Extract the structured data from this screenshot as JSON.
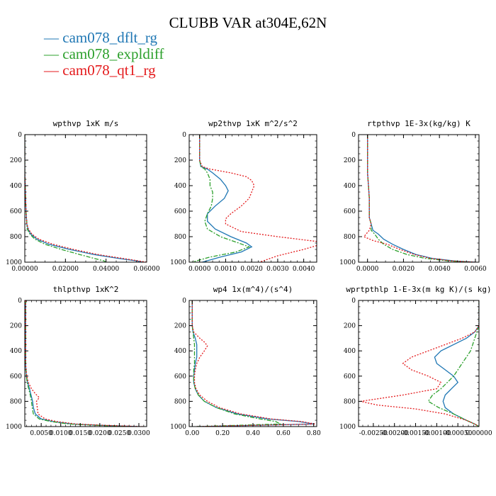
{
  "title": "CLUBB VAR at304E,62N",
  "legend": [
    {
      "label": "cam078_dflt_rg",
      "color": "#1f77b4"
    },
    {
      "label": "cam078_expldiff",
      "color": "#2ca02c"
    },
    {
      "label": "cam078_qt1_rg",
      "color": "#e41a1c"
    }
  ],
  "chart_data": [
    {
      "type": "line",
      "title": "wpthvp  1xK m/s",
      "xlim": [
        0,
        0.06
      ],
      "ylim": [
        0,
        1000
      ],
      "x_ticks": [
        0,
        0.02,
        0.04,
        0.06
      ],
      "x_tick_labels": [
        "0.00000",
        "0.02000",
        "0.04000",
        "0.06000"
      ],
      "y_ticks": [
        0,
        200,
        400,
        600,
        800,
        1000
      ],
      "y_tick_labels": [
        "0",
        "200",
        "400",
        "600",
        "800",
        "1000"
      ],
      "series": [
        {
          "name": "cam078_dflt_rg",
          "y": [
            0,
            100,
            200,
            300,
            400,
            500,
            600,
            650,
            700,
            740,
            780,
            820,
            860,
            900,
            940,
            970,
            990,
            1000
          ],
          "x": [
            0,
            0,
            0,
            0,
            0.0002,
            0.0004,
            0.0006,
            0.0008,
            0.001,
            0.0015,
            0.003,
            0.006,
            0.012,
            0.022,
            0.034,
            0.046,
            0.055,
            0.058
          ]
        },
        {
          "name": "cam078_expldiff",
          "y": [
            0,
            100,
            200,
            300,
            400,
            500,
            600,
            650,
            700,
            740,
            780,
            820,
            860,
            900,
            940,
            970,
            990,
            1000
          ],
          "x": [
            0,
            0,
            0,
            0,
            0.0002,
            0.0004,
            0.0006,
            0.0008,
            0.001,
            0.0012,
            0.0025,
            0.005,
            0.01,
            0.018,
            0.027,
            0.034,
            0.039,
            0.04
          ]
        },
        {
          "name": "cam078_qt1_rg",
          "y": [
            0,
            100,
            200,
            300,
            400,
            500,
            600,
            650,
            700,
            740,
            780,
            820,
            860,
            900,
            940,
            970,
            990,
            1000
          ],
          "x": [
            0,
            0,
            0,
            0,
            0.0002,
            0.0004,
            0.0006,
            0.0008,
            0.001,
            0.0018,
            0.0035,
            0.007,
            0.014,
            0.024,
            0.036,
            0.048,
            0.056,
            0.06
          ]
        }
      ]
    },
    {
      "type": "line",
      "title": "wp2thvp  1xK m^2/s^2",
      "xlim": [
        -0.0004,
        0.0045
      ],
      "ylim": [
        0,
        1000
      ],
      "x_ticks": [
        0,
        0.001,
        0.002,
        0.003,
        0.004
      ],
      "x_tick_labels": [
        "0.0000",
        "0.0010",
        "0.0020",
        "0.0030",
        "0.0040"
      ],
      "y_ticks": [
        0,
        200,
        400,
        600,
        800,
        1000
      ],
      "y_tick_labels": [
        "0",
        "200",
        "400",
        "600",
        "800",
        "1000"
      ],
      "series": [
        {
          "name": "cam078_dflt_rg",
          "y": [
            0,
            100,
            200,
            250,
            270,
            300,
            350,
            400,
            440,
            500,
            560,
            620,
            680,
            740,
            800,
            850,
            880,
            920,
            960,
            1000
          ],
          "x": [
            0,
            0,
            0,
            5e-05,
            0.0003,
            0.0005,
            0.0008,
            0.001,
            0.0011,
            0.00095,
            0.0006,
            0.0003,
            0.0003,
            0.0006,
            0.0012,
            0.0018,
            0.002,
            0.0016,
            0.0008,
            0.0001
          ]
        },
        {
          "name": "cam078_expldiff",
          "y": [
            0,
            100,
            200,
            250,
            270,
            300,
            350,
            400,
            450,
            500,
            560,
            620,
            680,
            740,
            800,
            850,
            880,
            920,
            960,
            1000
          ],
          "x": [
            0,
            0,
            0,
            5e-05,
            0.0002,
            0.0003,
            0.0004,
            0.0004,
            0.0005,
            0.0005,
            0.00045,
            0.0003,
            0.0002,
            0.0003,
            0.0008,
            0.0015,
            0.0019,
            0.0014,
            0.0004,
            -0.0003
          ]
        },
        {
          "name": "cam078_qt1_rg",
          "y": [
            0,
            100,
            200,
            250,
            270,
            300,
            330,
            360,
            400,
            450,
            500,
            560,
            620,
            660,
            700,
            760,
            800,
            840,
            870,
            900,
            950,
            1000
          ],
          "x": [
            0,
            0,
            0,
            0.0001,
            0.0004,
            0.0012,
            0.0018,
            0.002,
            0.0021,
            0.002,
            0.0019,
            0.0016,
            0.0012,
            0.001,
            0.001,
            0.0016,
            0.003,
            0.0046,
            0.0045,
            0.004,
            0.003,
            0.0023
          ]
        }
      ]
    },
    {
      "type": "line",
      "title": "rtpthvp  1E-3x(kg/kg) K",
      "xlim": [
        -0.0005,
        0.0062
      ],
      "ylim": [
        0,
        1000
      ],
      "x_ticks": [
        0,
        0.002,
        0.004,
        0.006
      ],
      "x_tick_labels": [
        "0.0000",
        "0.0020",
        "0.0040",
        "0.0060"
      ],
      "y_ticks": [
        0,
        200,
        400,
        600,
        800,
        1000
      ],
      "y_tick_labels": [
        "0",
        "200",
        "400",
        "600",
        "800",
        "1000"
      ],
      "series": [
        {
          "name": "cam078_dflt_rg",
          "y": [
            0,
            100,
            200,
            300,
            400,
            500,
            600,
            650,
            700,
            750,
            780,
            820,
            860,
            900,
            940,
            970,
            990,
            1000
          ],
          "x": [
            0,
            0,
            0,
            0,
            5e-05,
            0.0001,
            0.0001,
            0.0001,
            0.0002,
            0.0003,
            0.0006,
            0.0009,
            0.0014,
            0.002,
            0.0027,
            0.0036,
            0.0048,
            0.006
          ]
        },
        {
          "name": "cam078_expldiff",
          "y": [
            0,
            100,
            200,
            300,
            400,
            500,
            600,
            650,
            700,
            750,
            780,
            820,
            860,
            900,
            940,
            970,
            990,
            1000
          ],
          "x": [
            0,
            0,
            0,
            0,
            5e-05,
            0.0001,
            0.0001,
            0.0001,
            0.0002,
            0.0002,
            0.0004,
            0.0006,
            0.0009,
            0.0014,
            0.0022,
            0.0032,
            0.0045,
            0.0058
          ]
        },
        {
          "name": "cam078_qt1_rg",
          "y": [
            0,
            100,
            200,
            300,
            400,
            500,
            600,
            650,
            700,
            750,
            800,
            830,
            860,
            900,
            940,
            970,
            990,
            1000
          ],
          "x": [
            0,
            0,
            0,
            0,
            5e-05,
            0.0001,
            0.0001,
            0.0001,
            0.0002,
            0.0001,
            -0.0002,
            0.0003,
            0.0011,
            0.0018,
            0.0026,
            0.0035,
            0.0047,
            0.006
          ]
        }
      ]
    },
    {
      "type": "line",
      "title": "thlpthvp  1xK^2",
      "xlim": [
        0.0008,
        0.032
      ],
      "ylim": [
        0,
        1000
      ],
      "x_ticks": [
        0.005,
        0.01,
        0.015,
        0.02,
        0.025,
        0.03
      ],
      "x_tick_labels": [
        "0.0050",
        "0.0100",
        "0.0150",
        "0.0200",
        "0.0250",
        "0.0300"
      ],
      "y_ticks": [
        0,
        200,
        400,
        600,
        800,
        1000
      ],
      "y_tick_labels": [
        "0",
        "200",
        "400",
        "600",
        "800",
        "1000"
      ],
      "series": [
        {
          "name": "cam078_dflt_rg",
          "y": [
            0,
            100,
            200,
            300,
            400,
            500,
            600,
            650,
            700,
            750,
            800,
            850,
            900,
            940,
            960,
            980,
            990,
            1000
          ],
          "x": [
            0.001,
            0.001,
            0.001,
            0.001,
            0.001,
            0.001,
            0.0012,
            0.0015,
            0.002,
            0.0024,
            0.0028,
            0.003,
            0.0035,
            0.005,
            0.008,
            0.013,
            0.02,
            0.03
          ]
        },
        {
          "name": "cam078_expldiff",
          "y": [
            0,
            100,
            200,
            300,
            400,
            500,
            600,
            650,
            700,
            750,
            800,
            850,
            900,
            940,
            960,
            980,
            990,
            1000
          ],
          "x": [
            0.001,
            0.001,
            0.001,
            0.001,
            0.001,
            0.001,
            0.0012,
            0.0014,
            0.0018,
            0.0022,
            0.0025,
            0.0027,
            0.003,
            0.0045,
            0.0075,
            0.012,
            0.019,
            0.028
          ]
        },
        {
          "name": "cam078_qt1_rg",
          "y": [
            0,
            100,
            200,
            300,
            400,
            500,
            600,
            650,
            700,
            740,
            770,
            800,
            850,
            900,
            940,
            960,
            980,
            990,
            1000
          ],
          "x": [
            0.001,
            0.001,
            0.001,
            0.001,
            0.001,
            0.001,
            0.0013,
            0.0017,
            0.0025,
            0.0035,
            0.0045,
            0.0038,
            0.004,
            0.0042,
            0.006,
            0.009,
            0.014,
            0.021,
            0.031
          ]
        }
      ]
    },
    {
      "type": "line",
      "title": "wp4  1x(m^4)/(s^4)",
      "xlim": [
        -0.02,
        0.82
      ],
      "ylim": [
        0,
        1000
      ],
      "x_ticks": [
        0,
        0.2,
        0.4,
        0.6,
        0.8
      ],
      "x_tick_labels": [
        "0.00",
        "0.20",
        "0.40",
        "0.60",
        "0.80"
      ],
      "y_ticks": [
        0,
        200,
        400,
        600,
        800,
        1000
      ],
      "y_tick_labels": [
        "0",
        "200",
        "400",
        "600",
        "800",
        "1000"
      ],
      "series": [
        {
          "name": "cam078_dflt_rg",
          "y": [
            0,
            100,
            200,
            250,
            300,
            350,
            400,
            450,
            500,
            550,
            600,
            650,
            700,
            750,
            800,
            850,
            900,
            940,
            960,
            980,
            1000
          ],
          "x": [
            0,
            0,
            0,
            0.005,
            0.02,
            0.03,
            0.03,
            0.03,
            0.02,
            0.015,
            0.01,
            0.01,
            0.02,
            0.04,
            0.08,
            0.16,
            0.3,
            0.5,
            0.7,
            0.8,
            0.03
          ]
        },
        {
          "name": "cam078_expldiff",
          "y": [
            0,
            100,
            200,
            250,
            300,
            350,
            400,
            450,
            500,
            550,
            600,
            650,
            700,
            750,
            800,
            850,
            900,
            940,
            960,
            980,
            1000
          ],
          "x": [
            0,
            0,
            0,
            0.005,
            0.01,
            0.015,
            0.015,
            0.015,
            0.015,
            0.01,
            0.01,
            0.01,
            0.02,
            0.04,
            0.08,
            0.16,
            0.28,
            0.45,
            0.55,
            0.58,
            0.03
          ]
        },
        {
          "name": "cam078_qt1_rg",
          "y": [
            0,
            100,
            200,
            250,
            300,
            330,
            360,
            400,
            450,
            500,
            550,
            600,
            650,
            700,
            750,
            800,
            850,
            900,
            940,
            960,
            980,
            1000
          ],
          "x": [
            0,
            0,
            0,
            0.01,
            0.05,
            0.08,
            0.1,
            0.08,
            0.05,
            0.03,
            0.02,
            0.015,
            0.015,
            0.025,
            0.05,
            0.1,
            0.18,
            0.32,
            0.52,
            0.72,
            0.81,
            0.03
          ]
        }
      ]
    },
    {
      "type": "line",
      "title": "wprtpthlp  1-E-3x(m kg K)/(s kg)",
      "xlim": [
        -0.00285,
        0.0
      ],
      "ylim": [
        0,
        1000
      ],
      "x_ticks": [
        -0.0025,
        -0.002,
        -0.0015,
        -0.001,
        -0.0005,
        0.0
      ],
      "x_tick_labels": [
        "-0.00250",
        "-0.00200",
        "-0.00150",
        "-0.00100",
        "-0.00050",
        "0.00000"
      ],
      "y_ticks": [
        0,
        200,
        400,
        600,
        800,
        1000
      ],
      "y_tick_labels": [
        "0",
        "200",
        "400",
        "600",
        "800",
        "1000"
      ],
      "series": [
        {
          "name": "cam078_dflt_rg",
          "y": [
            0,
            100,
            200,
            250,
            300,
            350,
            400,
            450,
            500,
            550,
            600,
            650,
            700,
            750,
            800,
            850,
            900,
            950,
            980,
            1000
          ],
          "x": [
            0,
            0,
            0,
            -0.0001,
            -0.0003,
            -0.0006,
            -0.0009,
            -0.00105,
            -0.001,
            -0.0008,
            -0.0006,
            -0.0005,
            -0.00065,
            -0.0008,
            -0.00085,
            -0.0008,
            -0.0006,
            -0.0003,
            -0.0001,
            0
          ]
        },
        {
          "name": "cam078_expldiff",
          "y": [
            0,
            100,
            200,
            250,
            300,
            350,
            400,
            450,
            500,
            550,
            600,
            650,
            700,
            750,
            800,
            850,
            900,
            950,
            980,
            1000
          ],
          "x": [
            0,
            0,
            0,
            -5e-05,
            -0.0001,
            -0.00015,
            -0.0002,
            -0.0003,
            -0.0004,
            -0.0005,
            -0.0006,
            -0.00075,
            -0.0009,
            -0.0011,
            -0.0012,
            -0.00095,
            -0.0006,
            -0.0003,
            -0.0001,
            0
          ]
        },
        {
          "name": "cam078_qt1_rg",
          "y": [
            0,
            100,
            200,
            250,
            300,
            350,
            400,
            450,
            500,
            550,
            600,
            650,
            700,
            750,
            800,
            830,
            860,
            900,
            950,
            980,
            1000
          ],
          "x": [
            0,
            0,
            0,
            -0.0001,
            -0.0004,
            -0.0008,
            -0.0012,
            -0.0016,
            -0.0018,
            -0.0016,
            -0.0012,
            -0.0009,
            -0.001,
            -0.0018,
            -0.0028,
            -0.0024,
            -0.0015,
            -0.0008,
            -0.0003,
            -0.0001,
            0
          ]
        }
      ]
    }
  ]
}
